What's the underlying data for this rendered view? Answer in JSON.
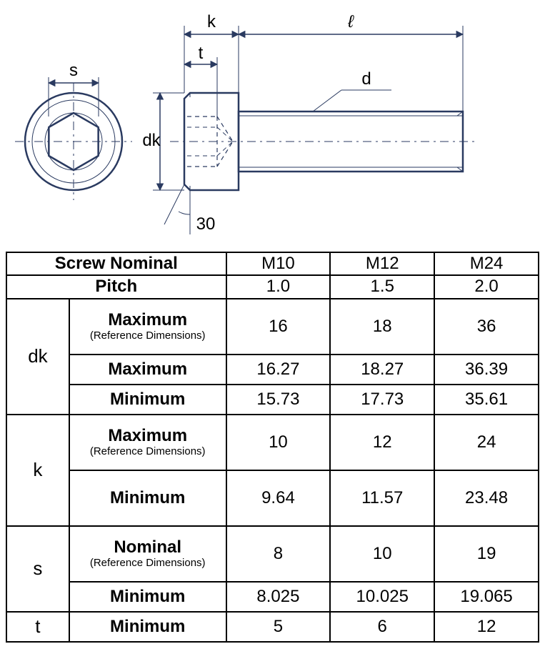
{
  "diagram": {
    "labels": {
      "s": "s",
      "k": "k",
      "l": "ℓ",
      "t": "t",
      "dk": "dk",
      "d": "d",
      "angle": "30"
    },
    "stroke": "#2a3a60",
    "thin": 1.5,
    "thick": 2.5,
    "dash_long": "12 6 3 6",
    "dash_short": "6 5"
  },
  "table": {
    "headers": {
      "screw_nominal": "Screw Nominal",
      "pitch": "Pitch"
    },
    "size_cols": [
      "M10",
      "M12",
      "M24"
    ],
    "pitch": [
      "1.0",
      "1.5",
      "2.0"
    ],
    "groups": [
      {
        "param": "dk",
        "rows": [
          {
            "label": "Maximum",
            "sub": "(Reference Dimensions)",
            "vals": [
              "16",
              "18",
              "36"
            ],
            "tall": true
          },
          {
            "label": "Maximum",
            "vals": [
              "16.27",
              "18.27",
              "36.39"
            ]
          },
          {
            "label": "Minimum",
            "vals": [
              "15.73",
              "17.73",
              "35.61"
            ]
          }
        ]
      },
      {
        "param": "k",
        "rows": [
          {
            "label": "Maximum",
            "sub": "(Reference Dimensions)",
            "vals": [
              "10",
              "12",
              "24"
            ],
            "tall": true
          },
          {
            "label": "Minimum",
            "vals": [
              "9.64",
              "11.57",
              "23.48"
            ],
            "tall": true
          }
        ]
      },
      {
        "param": "s",
        "rows": [
          {
            "label": "Nominal",
            "sub": "(Reference Dimensions)",
            "vals": [
              "8",
              "10",
              "19"
            ],
            "tall": true
          },
          {
            "label": "Minimum",
            "vals": [
              "8.025",
              "10.025",
              "19.065"
            ]
          }
        ]
      },
      {
        "param": "t",
        "rows": [
          {
            "label": "Minimum",
            "vals": [
              "5",
              "6",
              "12"
            ]
          }
        ]
      }
    ]
  }
}
